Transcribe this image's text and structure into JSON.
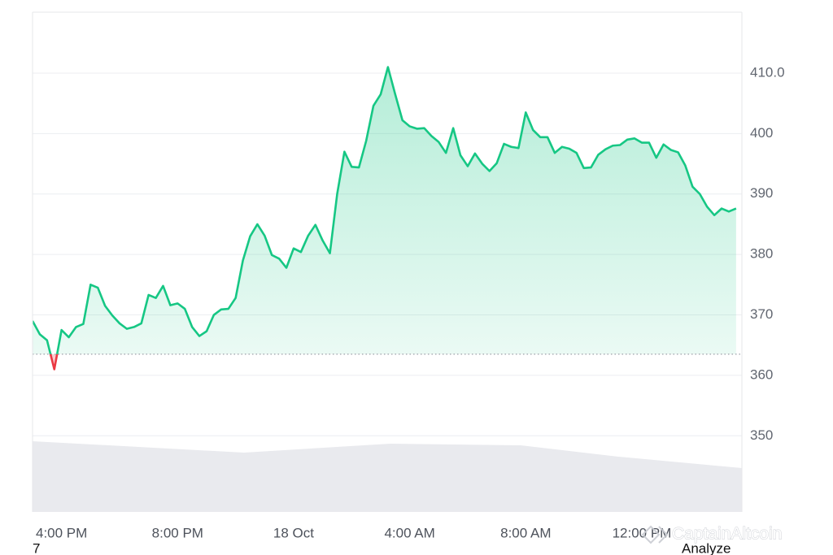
{
  "chart_data": {
    "type": "line",
    "x": [
      15,
      15.25,
      15.5,
      15.75,
      16,
      16.25,
      16.5,
      16.75,
      17,
      17.25,
      17.5,
      17.75,
      18,
      18.25,
      18.5,
      18.75,
      19,
      19.25,
      19.5,
      19.75,
      20,
      20.25,
      20.5,
      20.75,
      21,
      21.25,
      21.5,
      21.75,
      22,
      22.25,
      22.5,
      22.75,
      23,
      23.25,
      23.5,
      23.75,
      24,
      24.25,
      24.5,
      24.75,
      25,
      25.25,
      25.5,
      25.75,
      26,
      26.25,
      26.5,
      26.75,
      27,
      27.25,
      27.5,
      27.75,
      28,
      28.25,
      28.5,
      28.75,
      29,
      29.25,
      29.5,
      29.75,
      30,
      30.25,
      30.5,
      30.75,
      31,
      31.25,
      31.5,
      31.75,
      32,
      32.25,
      32.5,
      32.75,
      33,
      33.25,
      33.5,
      33.75,
      34,
      34.25,
      34.5,
      34.75,
      35,
      35.25,
      35.5,
      35.75,
      36,
      36.25,
      36.5,
      36.75,
      37,
      37.25,
      37.5,
      37.75,
      38,
      38.25,
      38.5,
      38.75,
      39,
      39.25
    ],
    "values": [
      369.0,
      366.8,
      365.8,
      361.0,
      367.5,
      366.3,
      368.0,
      368.5,
      375.0,
      374.5,
      371.5,
      369.9,
      368.6,
      367.7,
      368.0,
      368.6,
      373.3,
      372.8,
      374.8,
      371.6,
      371.9,
      371.0,
      368.0,
      366.5,
      367.3,
      370.0,
      370.9,
      371.0,
      372.8,
      379.0,
      383.0,
      385.0,
      383.1,
      379.9,
      379.3,
      377.8,
      381.0,
      380.4,
      383.1,
      384.9,
      382.3,
      380.2,
      390.0,
      397.0,
      394.5,
      394.4,
      398.8,
      404.6,
      406.5,
      411.0,
      406.5,
      402.2,
      401.2,
      400.8,
      400.9,
      399.6,
      398.6,
      396.8,
      400.9,
      396.4,
      394.6,
      396.7,
      395.0,
      393.8,
      395.1,
      398.3,
      397.8,
      397.6,
      403.5,
      400.6,
      399.4,
      399.4,
      396.8,
      397.8,
      397.5,
      396.8,
      394.3,
      394.4,
      396.5,
      397.4,
      398.0,
      398.1,
      399.0,
      399.2,
      398.5,
      398.5,
      396.0,
      398.2,
      397.3,
      396.9,
      394.7,
      391.2,
      390.0,
      387.9,
      386.5,
      387.6,
      387.1,
      387.6
    ],
    "color": "#16c784",
    "negative_color": "#ea3943",
    "baseline": 363.5,
    "xlim": [
      15,
      39.45
    ],
    "ylim": [
      337,
      420
    ],
    "xticks": [
      {
        "value": 16,
        "label": "4:00 PM"
      },
      {
        "value": 20,
        "label": "8:00 PM"
      },
      {
        "value": 24,
        "label": "18 Oct"
      },
      {
        "value": 28,
        "label": "4:00 AM"
      },
      {
        "value": 32,
        "label": "8:00 AM"
      },
      {
        "value": 36,
        "label": "12:00 PM"
      }
    ],
    "yticks": [
      350,
      360,
      370,
      380,
      390,
      400,
      {
        "value": 410,
        "label": "410.0"
      }
    ],
    "grid": true,
    "watermark": "CaptainAltcoin"
  },
  "footer": {
    "left": "7",
    "right": "Analyze"
  }
}
